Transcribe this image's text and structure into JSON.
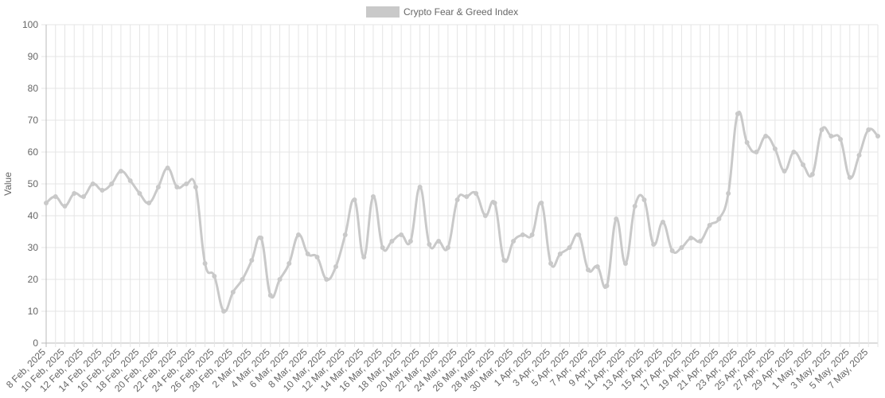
{
  "chart_data": {
    "type": "line",
    "y_label": "Value",
    "categories": [
      "8 Feb, 2025",
      null,
      "10 Feb, 2025",
      null,
      "12 Feb, 2025",
      null,
      "14 Feb, 2025",
      null,
      "16 Feb, 2025",
      null,
      "18 Feb, 2025",
      null,
      "20 Feb, 2025",
      null,
      "22 Feb, 2025",
      null,
      "24 Feb, 2025",
      null,
      "26 Feb, 2025",
      null,
      "28 Feb, 2025",
      null,
      "2 Mar, 2025",
      null,
      "4 Mar, 2025",
      null,
      "6 Mar, 2025",
      null,
      "8 Mar, 2025",
      null,
      "10 Mar, 2025",
      null,
      "12 Mar, 2025",
      null,
      "14 Mar, 2025",
      null,
      "16 Mar, 2025",
      null,
      "18 Mar, 2025",
      null,
      "20 Mar, 2025",
      null,
      "22 Mar, 2025",
      null,
      "24 Mar, 2025",
      null,
      "26 Mar, 2025",
      null,
      "28 Mar, 2025",
      null,
      "30 Mar, 2025",
      null,
      "1 Apr, 2025",
      null,
      "3 Apr, 2025",
      null,
      "5 Apr, 2025",
      null,
      "7 Apr, 2025",
      null,
      "9 Apr, 2025",
      null,
      "11 Apr, 2025",
      null,
      "13 Apr, 2025",
      null,
      "15 Apr, 2025",
      null,
      "17 Apr, 2025",
      null,
      "19 Apr, 2025",
      null,
      "21 Apr, 2025",
      null,
      "23 Apr, 2025",
      null,
      "25 Apr, 2025",
      null,
      "27 Apr, 2025",
      null,
      "29 Apr, 2025",
      null,
      "1 May, 2025",
      null,
      "3 May, 2025",
      null,
      "5 May, 2025",
      null,
      "7 May, 2025",
      null
    ],
    "series": [
      {
        "name": "Crypto Fear & Greed Index",
        "color": "#c9c9c9",
        "values": [
          44,
          46,
          43,
          47,
          46,
          50,
          48,
          50,
          54,
          51,
          47,
          44,
          49,
          55,
          49,
          50,
          49,
          25,
          21,
          10,
          16,
          20,
          26,
          33,
          15,
          20,
          25,
          34,
          28,
          27,
          20,
          24,
          34,
          45,
          27,
          46,
          30,
          32,
          34,
          32,
          49,
          31,
          32,
          30,
          45,
          46,
          47,
          40,
          44,
          26,
          32,
          34,
          34,
          44,
          25,
          28,
          30,
          34,
          23,
          24,
          18,
          39,
          25,
          43,
          45,
          31,
          38,
          29,
          30,
          33,
          32,
          37,
          39,
          47,
          72,
          63,
          60,
          65,
          61,
          54,
          60,
          56,
          53,
          67,
          65,
          64,
          52,
          59,
          67,
          65
        ]
      }
    ],
    "ylim": [
      0,
      100
    ],
    "yticks": [
      0,
      10,
      20,
      30,
      40,
      50,
      60,
      70,
      80,
      90,
      100
    ],
    "grid": true,
    "legend": "top"
  }
}
